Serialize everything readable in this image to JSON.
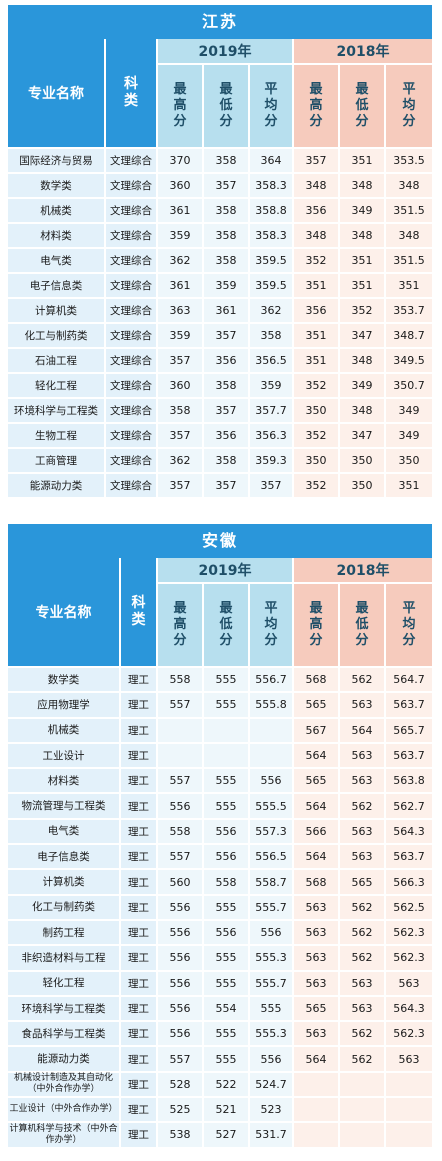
{
  "headers": {
    "major": "专业名称",
    "category": "科类",
    "year_a": "2019年",
    "year_b": "2018年",
    "max": "最高分",
    "min": "最低分",
    "avg": "平均分"
  },
  "jiangsu": {
    "title": "江苏",
    "rows": [
      {
        "major": "国际经济与贸易",
        "cat": "文理综合",
        "a": [
          "370",
          "358",
          "364"
        ],
        "b": [
          "357",
          "351",
          "353.5"
        ]
      },
      {
        "major": "数学类",
        "cat": "文理综合",
        "a": [
          "360",
          "357",
          "358.3"
        ],
        "b": [
          "348",
          "348",
          "348"
        ]
      },
      {
        "major": "机械类",
        "cat": "文理综合",
        "a": [
          "361",
          "358",
          "358.8"
        ],
        "b": [
          "356",
          "349",
          "351.5"
        ]
      },
      {
        "major": "材料类",
        "cat": "文理综合",
        "a": [
          "359",
          "358",
          "358.3"
        ],
        "b": [
          "348",
          "348",
          "348"
        ]
      },
      {
        "major": "电气类",
        "cat": "文理综合",
        "a": [
          "362",
          "358",
          "359.5"
        ],
        "b": [
          "352",
          "351",
          "351.5"
        ]
      },
      {
        "major": "电子信息类",
        "cat": "文理综合",
        "a": [
          "361",
          "359",
          "359.5"
        ],
        "b": [
          "351",
          "351",
          "351"
        ]
      },
      {
        "major": "计算机类",
        "cat": "文理综合",
        "a": [
          "363",
          "361",
          "362"
        ],
        "b": [
          "356",
          "352",
          "353.7"
        ]
      },
      {
        "major": "化工与制药类",
        "cat": "文理综合",
        "a": [
          "359",
          "357",
          "358"
        ],
        "b": [
          "351",
          "347",
          "348.7"
        ]
      },
      {
        "major": "石油工程",
        "cat": "文理综合",
        "a": [
          "357",
          "356",
          "356.5"
        ],
        "b": [
          "351",
          "348",
          "349.5"
        ]
      },
      {
        "major": "轻化工程",
        "cat": "文理综合",
        "a": [
          "360",
          "358",
          "359"
        ],
        "b": [
          "352",
          "349",
          "350.7"
        ]
      },
      {
        "major": "环境科学与工程类",
        "cat": "文理综合",
        "a": [
          "358",
          "357",
          "357.7"
        ],
        "b": [
          "350",
          "348",
          "349"
        ]
      },
      {
        "major": "生物工程",
        "cat": "文理综合",
        "a": [
          "357",
          "356",
          "356.3"
        ],
        "b": [
          "352",
          "347",
          "349"
        ]
      },
      {
        "major": "工商管理",
        "cat": "文理综合",
        "a": [
          "362",
          "358",
          "359.3"
        ],
        "b": [
          "350",
          "350",
          "350"
        ]
      },
      {
        "major": "能源动力类",
        "cat": "文理综合",
        "a": [
          "357",
          "357",
          "357"
        ],
        "b": [
          "352",
          "350",
          "351"
        ]
      }
    ]
  },
  "anhui": {
    "title": "安徽",
    "rows": [
      {
        "major": "数学类",
        "cat": "理工",
        "a": [
          "558",
          "555",
          "556.7"
        ],
        "b": [
          "568",
          "562",
          "564.7"
        ]
      },
      {
        "major": "应用物理学",
        "cat": "理工",
        "a": [
          "557",
          "555",
          "555.8"
        ],
        "b": [
          "565",
          "563",
          "563.7"
        ]
      },
      {
        "major": "机械类",
        "cat": "理工",
        "a": [
          "",
          "",
          ""
        ],
        "b": [
          "567",
          "564",
          "565.7"
        ]
      },
      {
        "major": "工业设计",
        "cat": "理工",
        "a": [
          "",
          "",
          ""
        ],
        "b": [
          "564",
          "563",
          "563.7"
        ]
      },
      {
        "major": "材料类",
        "cat": "理工",
        "a": [
          "557",
          "555",
          "556"
        ],
        "b": [
          "565",
          "563",
          "563.8"
        ]
      },
      {
        "major": "物流管理与工程类",
        "cat": "理工",
        "a": [
          "556",
          "555",
          "555.5"
        ],
        "b": [
          "564",
          "562",
          "562.7"
        ]
      },
      {
        "major": "电气类",
        "cat": "理工",
        "a": [
          "558",
          "556",
          "557.3"
        ],
        "b": [
          "566",
          "563",
          "564.3"
        ]
      },
      {
        "major": "电子信息类",
        "cat": "理工",
        "a": [
          "557",
          "556",
          "556.5"
        ],
        "b": [
          "564",
          "563",
          "563.7"
        ]
      },
      {
        "major": "计算机类",
        "cat": "理工",
        "a": [
          "560",
          "558",
          "558.7"
        ],
        "b": [
          "568",
          "565",
          "566.3"
        ]
      },
      {
        "major": "化工与制药类",
        "cat": "理工",
        "a": [
          "556",
          "555",
          "555.7"
        ],
        "b": [
          "563",
          "562",
          "562.5"
        ]
      },
      {
        "major": "制药工程",
        "cat": "理工",
        "a": [
          "556",
          "556",
          "556"
        ],
        "b": [
          "563",
          "562",
          "562.3"
        ]
      },
      {
        "major": "非织造材料与工程",
        "cat": "理工",
        "a": [
          "556",
          "555",
          "555.3"
        ],
        "b": [
          "563",
          "562",
          "562.3"
        ]
      },
      {
        "major": "轻化工程",
        "cat": "理工",
        "a": [
          "556",
          "555",
          "555.7"
        ],
        "b": [
          "563",
          "563",
          "563"
        ]
      },
      {
        "major": "环境科学与工程类",
        "cat": "理工",
        "a": [
          "556",
          "554",
          "555"
        ],
        "b": [
          "565",
          "563",
          "564.3"
        ]
      },
      {
        "major": "食品科学与工程类",
        "cat": "理工",
        "a": [
          "556",
          "555",
          "555.3"
        ],
        "b": [
          "563",
          "562",
          "562.3"
        ]
      },
      {
        "major": "能源动力类",
        "cat": "理工",
        "a": [
          "557",
          "555",
          "556"
        ],
        "b": [
          "564",
          "562",
          "563"
        ]
      },
      {
        "major": "机械设计制造及其自动化（中外合作办学）",
        "cat": "理工",
        "a": [
          "528",
          "522",
          "524.7"
        ],
        "b": [
          "",
          "",
          ""
        ],
        "small": true
      },
      {
        "major": "工业设计（中外合作办学）",
        "cat": "理工",
        "a": [
          "525",
          "521",
          "523"
        ],
        "b": [
          "",
          "",
          ""
        ],
        "small": true
      },
      {
        "major": "计算机科学与技术（中外合作办学）",
        "cat": "理工",
        "a": [
          "538",
          "527",
          "531.7"
        ],
        "b": [
          "",
          "",
          ""
        ],
        "small": true
      }
    ]
  }
}
